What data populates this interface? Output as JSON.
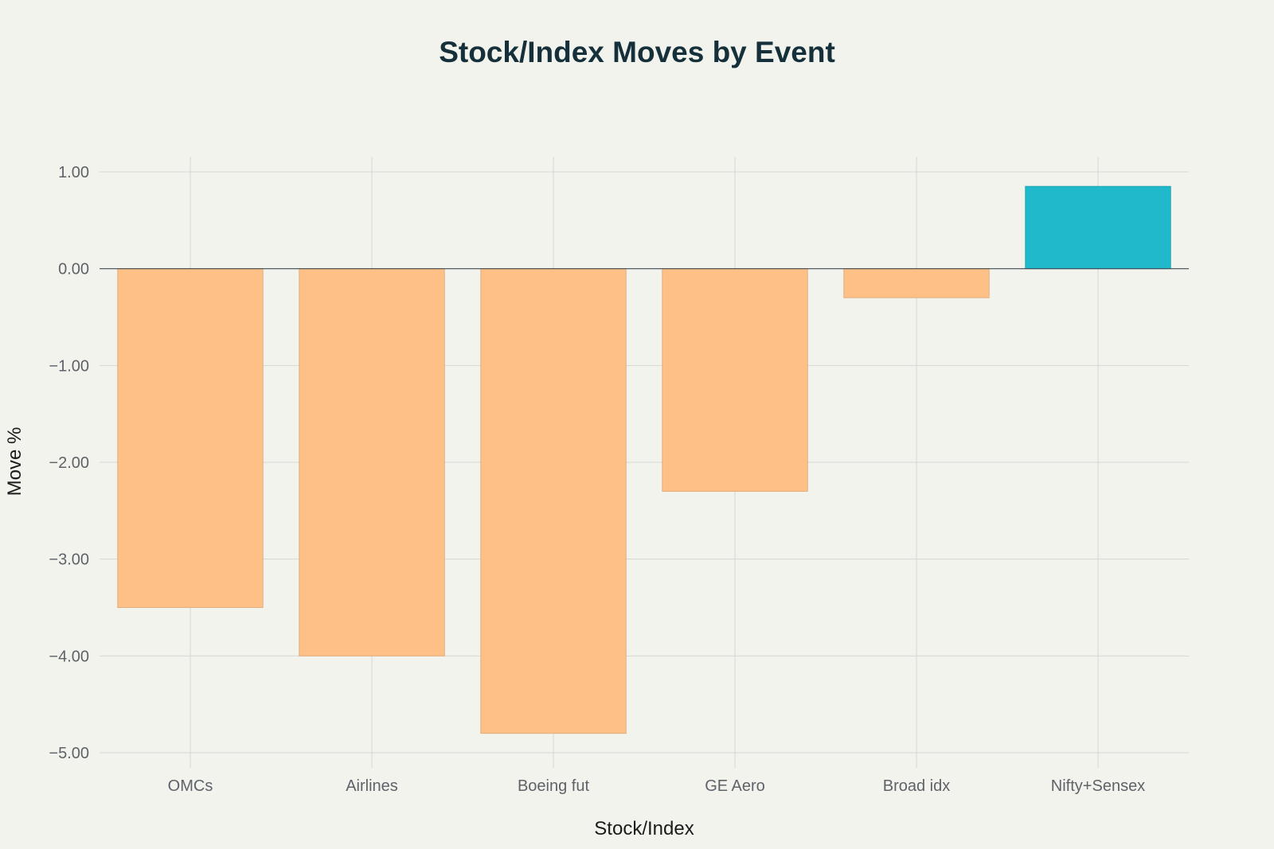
{
  "chart_data": {
    "type": "bar",
    "title": "Stock/Index Moves by Event",
    "xlabel": "Stock/Index",
    "ylabel": "Move %",
    "categories": [
      "OMCs",
      "Airlines",
      "Boeing fut",
      "GE Aero",
      "Broad idx",
      "Nifty+Sensex"
    ],
    "values": [
      -3.5,
      -4.0,
      -4.8,
      -2.3,
      -0.3,
      0.85
    ],
    "ylim": [
      -5.0,
      1.0
    ],
    "yticks": [
      1.0,
      0.0,
      -1.0,
      -2.0,
      -3.0,
      -4.0,
      -5.0
    ],
    "ytick_labels": [
      "1.00",
      "0.00",
      "−1.00",
      "−2.00",
      "−3.00",
      "−4.00",
      "−5.00"
    ],
    "grid": true,
    "legend": "none",
    "colors": {
      "negative": "#fec087",
      "positive": "#20b9cc"
    }
  }
}
